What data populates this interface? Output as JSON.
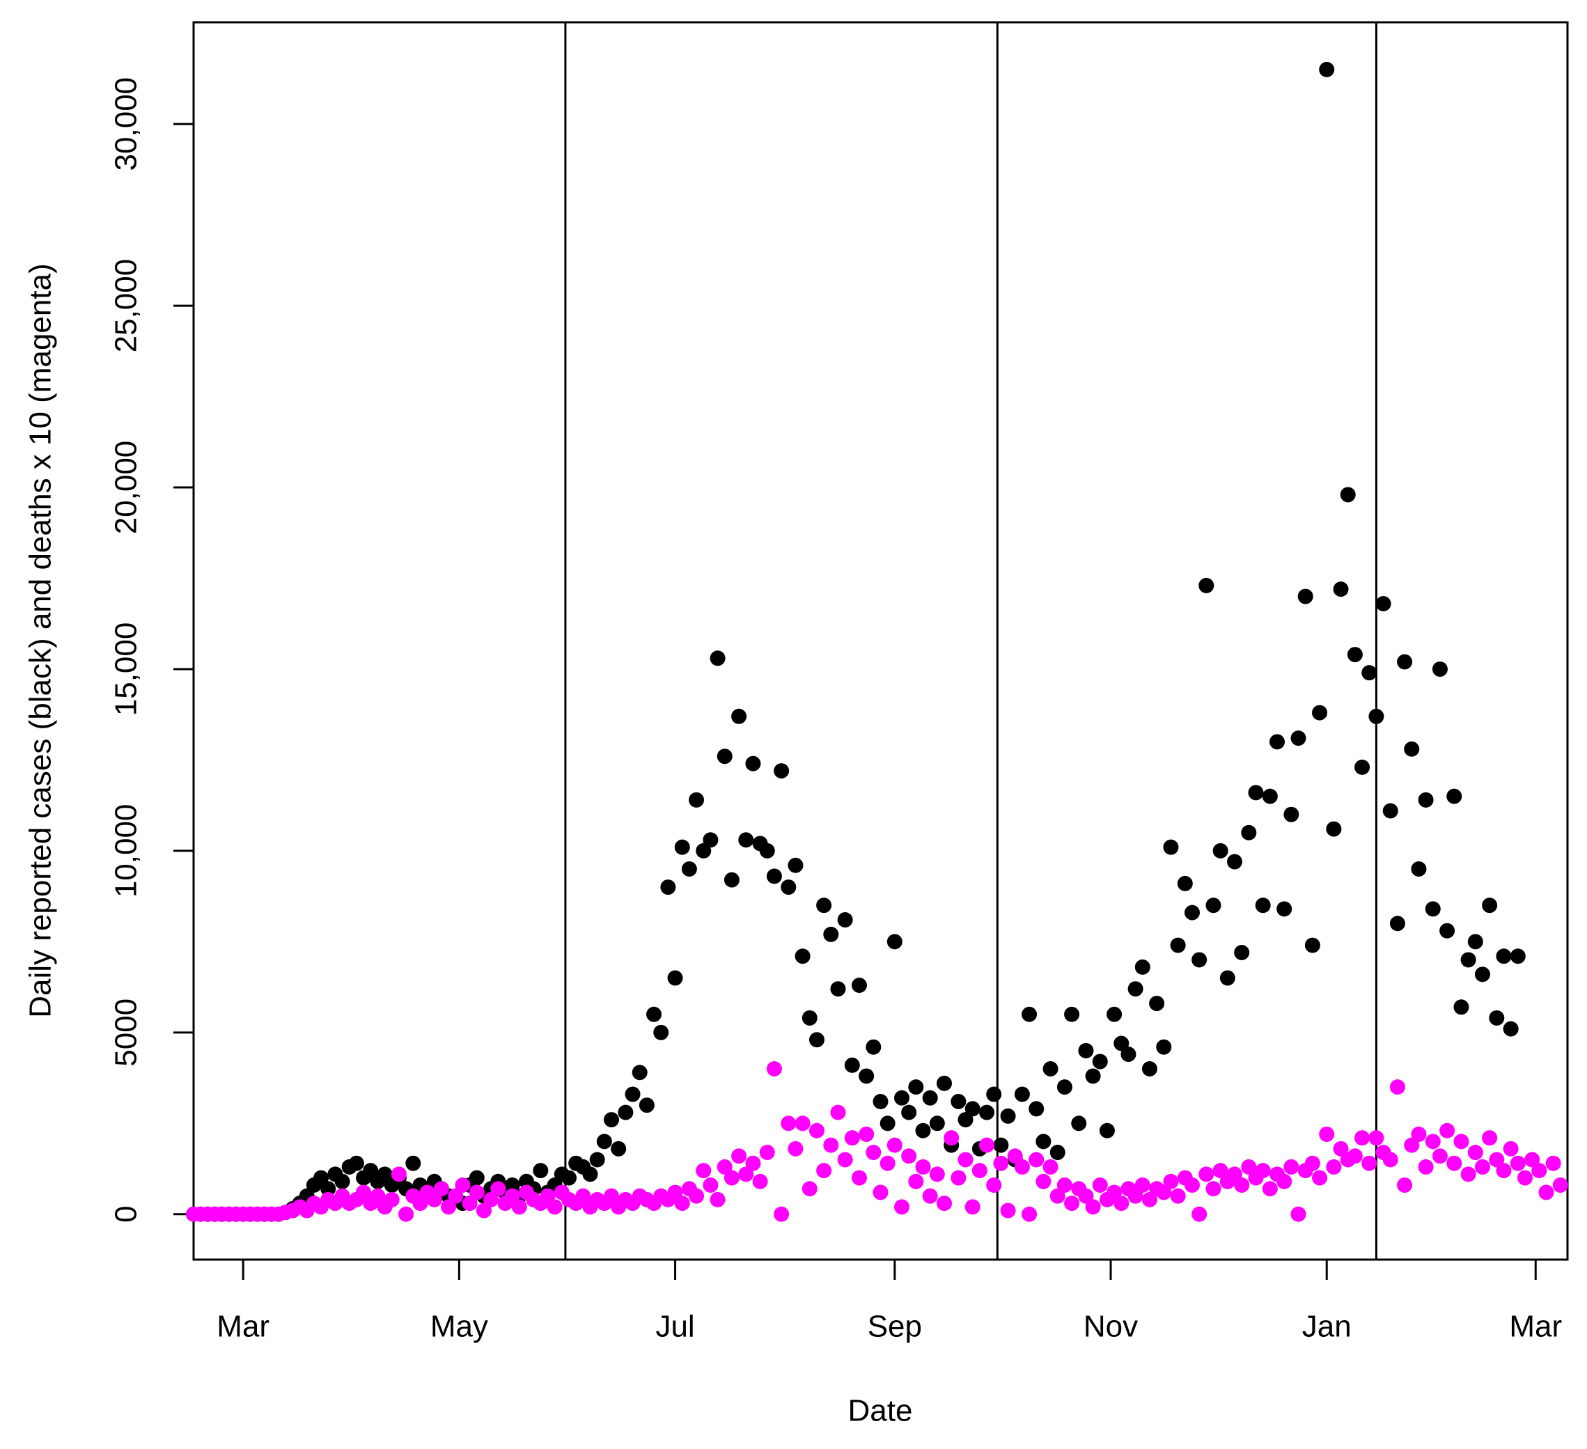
{
  "chart_data": {
    "type": "scatter",
    "xlabel": "Date",
    "ylabel": "Daily reported cases (black) and deaths x 10 (magenta)",
    "xlim": [
      -14,
      374
    ],
    "ylim": [
      -1250,
      32800
    ],
    "xticks": [
      {
        "value": 0,
        "label": "Mar"
      },
      {
        "value": 61,
        "label": "May"
      },
      {
        "value": 122,
        "label": "Jul"
      },
      {
        "value": 184,
        "label": "Sep"
      },
      {
        "value": 245,
        "label": "Nov"
      },
      {
        "value": 306,
        "label": "Jan"
      },
      {
        "value": 365,
        "label": "Mar"
      }
    ],
    "yticks": [
      0,
      5000,
      {
        "value": 10000,
        "label": "10,000"
      },
      {
        "value": 15000,
        "label": "15,000"
      },
      {
        "value": 20000,
        "label": "20,000"
      },
      {
        "value": 25000,
        "label": "25,000"
      },
      {
        "value": 30000,
        "label": "30,000"
      }
    ],
    "vlines": [
      91,
      213,
      320
    ],
    "x": [
      -14,
      -12,
      -10,
      -8,
      -6,
      -4,
      -2,
      0,
      2,
      4,
      6,
      8,
      10,
      12,
      14,
      16,
      18,
      20,
      22,
      24,
      26,
      28,
      30,
      32,
      34,
      36,
      38,
      40,
      42,
      44,
      46,
      48,
      50,
      52,
      54,
      56,
      58,
      60,
      62,
      64,
      66,
      68,
      70,
      72,
      74,
      76,
      78,
      80,
      82,
      84,
      86,
      88,
      90,
      92,
      94,
      96,
      98,
      100,
      102,
      104,
      106,
      108,
      110,
      112,
      114,
      116,
      118,
      120,
      122,
      124,
      126,
      128,
      130,
      132,
      134,
      136,
      138,
      140,
      142,
      144,
      146,
      148,
      150,
      152,
      154,
      156,
      158,
      160,
      162,
      164,
      166,
      168,
      170,
      172,
      174,
      176,
      178,
      180,
      182,
      184,
      186,
      188,
      190,
      192,
      194,
      196,
      198,
      200,
      202,
      204,
      206,
      208,
      210,
      212,
      214,
      216,
      218,
      220,
      222,
      224,
      226,
      228,
      230,
      232,
      234,
      236,
      238,
      240,
      242,
      244,
      246,
      248,
      250,
      252,
      254,
      256,
      258,
      260,
      262,
      264,
      266,
      268,
      270,
      272,
      274,
      276,
      278,
      280,
      282,
      284,
      286,
      288,
      290,
      292,
      294,
      296,
      298,
      300,
      302,
      304,
      306,
      308,
      310,
      312,
      314,
      316,
      318,
      320,
      322,
      324,
      326,
      328,
      330,
      332,
      334,
      336,
      338,
      340,
      342,
      344,
      346,
      348,
      350,
      352,
      354,
      356,
      358,
      360,
      362,
      364,
      366,
      368,
      370,
      372
    ],
    "series": [
      {
        "color": "#000000",
        "values": [
          0,
          0,
          0,
          0,
          0,
          0,
          0,
          0,
          0,
          0,
          0,
          0,
          0,
          50,
          150,
          300,
          500,
          800,
          1000,
          700,
          1100,
          900,
          1300,
          1400,
          1000,
          1200,
          900,
          1100,
          800,
          1000,
          700,
          1400,
          800,
          600,
          900,
          700,
          500,
          400,
          300,
          800,
          1000,
          500,
          700,
          900,
          600,
          800,
          500,
          900,
          700,
          1200,
          600,
          800,
          1100,
          1000,
          1400,
          1300,
          1100,
          1500,
          2000,
          2600,
          1800,
          2800,
          3300,
          3900,
          3000,
          5500,
          5000,
          9000,
          6500,
          10100,
          9500,
          11400,
          10000,
          10300,
          15300,
          12600,
          9200,
          13700,
          10300,
          12400,
          10200,
          10000,
          9300,
          12200,
          9000,
          9600,
          7100,
          5400,
          4800,
          8500,
          7700,
          6200,
          8100,
          4100,
          6300,
          3800,
          4600,
          3100,
          2500,
          7500,
          3200,
          2800,
          3500,
          2300,
          3200,
          2500,
          3600,
          1900,
          3100,
          2600,
          2900,
          1800,
          2800,
          3300,
          1900,
          2700,
          1500,
          3300,
          5500,
          2900,
          2000,
          4000,
          1700,
          3500,
          5500,
          2500,
          4500,
          3800,
          4200,
          2300,
          5500,
          4700,
          4400,
          6200,
          6800,
          4000,
          5800,
          4600,
          10100,
          7400,
          9100,
          8300,
          7000,
          17300,
          8500,
          10000,
          6500,
          9700,
          7200,
          10500,
          11600,
          8500,
          11500,
          13000,
          8400,
          11000,
          13100,
          17000,
          7400,
          13800,
          31500,
          10600,
          17200,
          19800,
          15400,
          12300,
          14900,
          13700,
          16800,
          11100,
          8000,
          15200,
          12800,
          9500,
          11400,
          8400,
          15000,
          7800,
          11500,
          5700,
          7000,
          7500,
          6600,
          8500,
          5400,
          7100,
          5100,
          7100,
          null,
          null,
          null,
          null,
          null,
          null
        ]
      },
      {
        "color": "#ff00ff",
        "values": [
          0,
          0,
          0,
          0,
          0,
          0,
          0,
          0,
          0,
          0,
          0,
          0,
          0,
          50,
          100,
          200,
          100,
          300,
          200,
          400,
          300,
          500,
          300,
          400,
          600,
          300,
          500,
          200,
          400,
          1100,
          0,
          500,
          300,
          600,
          400,
          700,
          200,
          500,
          800,
          300,
          600,
          100,
          400,
          700,
          300,
          500,
          200,
          600,
          400,
          300,
          500,
          200,
          600,
          400,
          300,
          500,
          200,
          400,
          300,
          500,
          200,
          400,
          300,
          500,
          400,
          300,
          500,
          400,
          600,
          300,
          700,
          500,
          1200,
          800,
          400,
          1300,
          1000,
          1600,
          1100,
          1400,
          900,
          1700,
          4000,
          0,
          2500,
          1800,
          2500,
          700,
          2300,
          1200,
          1900,
          2800,
          1500,
          2100,
          1000,
          2200,
          1700,
          600,
          1400,
          1900,
          200,
          1600,
          900,
          1300,
          500,
          1100,
          300,
          2100,
          1000,
          1500,
          200,
          1200,
          1900,
          800,
          1400,
          100,
          1600,
          1300,
          0,
          1500,
          900,
          1300,
          500,
          800,
          300,
          700,
          500,
          200,
          800,
          400,
          600,
          300,
          700,
          500,
          800,
          400,
          700,
          600,
          900,
          500,
          1000,
          800,
          0,
          1100,
          700,
          1200,
          900,
          1100,
          800,
          1300,
          1000,
          1200,
          700,
          1100,
          900,
          1300,
          0,
          1200,
          1400,
          1000,
          2200,
          1300,
          1800,
          1500,
          1600,
          2100,
          1400,
          2100,
          1700,
          1500,
          3500,
          800,
          1900,
          2200,
          1300,
          2000,
          1600,
          2300,
          1400,
          2000,
          1100,
          1700,
          1300,
          2100,
          1500,
          1200,
          1800,
          1400,
          1000,
          1500,
          1200,
          600,
          1400,
          800
        ]
      }
    ]
  }
}
